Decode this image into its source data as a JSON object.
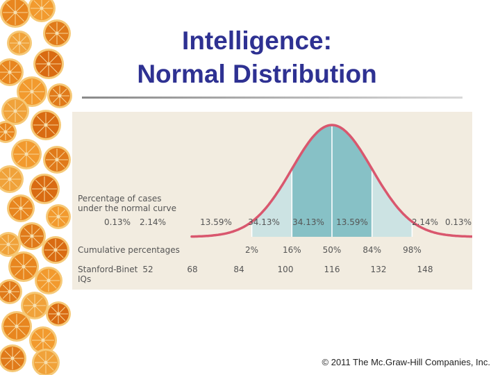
{
  "title": {
    "line1": "Intelligence:",
    "line2": "Normal Distribution"
  },
  "copyright": "© 2011 The Mc.Graw-Hill Companies, Inc.",
  "colors": {
    "title": "#2e3192",
    "panel": "#f2ece0",
    "curve": "#d9576e",
    "center_fill": "#87c1c6",
    "side_fill": "#cce3e3",
    "text": "#555555"
  },
  "chart_data": {
    "type": "area",
    "curve": "normal",
    "mean": 100,
    "sd": 16,
    "xlim": [
      44,
      156
    ],
    "area_label": "Percentage of cases under the normal curve",
    "area_label_lines": [
      "Percentage of cases",
      "under the normal curve"
    ],
    "band_percentages": [
      {
        "x_center": 44,
        "label": "0.13%"
      },
      {
        "x_center": 60,
        "label": "2.14%"
      },
      {
        "x_center": 76,
        "label": "13.59%"
      },
      {
        "x_center": 92,
        "label": "34.13%"
      },
      {
        "x_center": 108,
        "label": "34.13%"
      },
      {
        "x_center": 124,
        "label": "13.59%"
      },
      {
        "x_center": 140,
        "label": "2.14%"
      },
      {
        "x_center": 156,
        "label": "0.13%"
      }
    ],
    "cumulative_label": "Cumulative percentages",
    "cumulative": [
      {
        "x": 68,
        "label": "2%"
      },
      {
        "x": 84,
        "label": "16%"
      },
      {
        "x": 100,
        "label": "50%"
      },
      {
        "x": 116,
        "label": "84%"
      },
      {
        "x": 132,
        "label": "98%"
      }
    ],
    "iq_label_lines": [
      "Stanford-Binet",
      "IQs"
    ],
    "iq_scores": [
      52,
      68,
      84,
      100,
      116,
      132,
      148
    ],
    "center_band": [
      84,
      116
    ],
    "side_bands": [
      [
        68,
        84
      ],
      [
        116,
        132
      ]
    ]
  }
}
